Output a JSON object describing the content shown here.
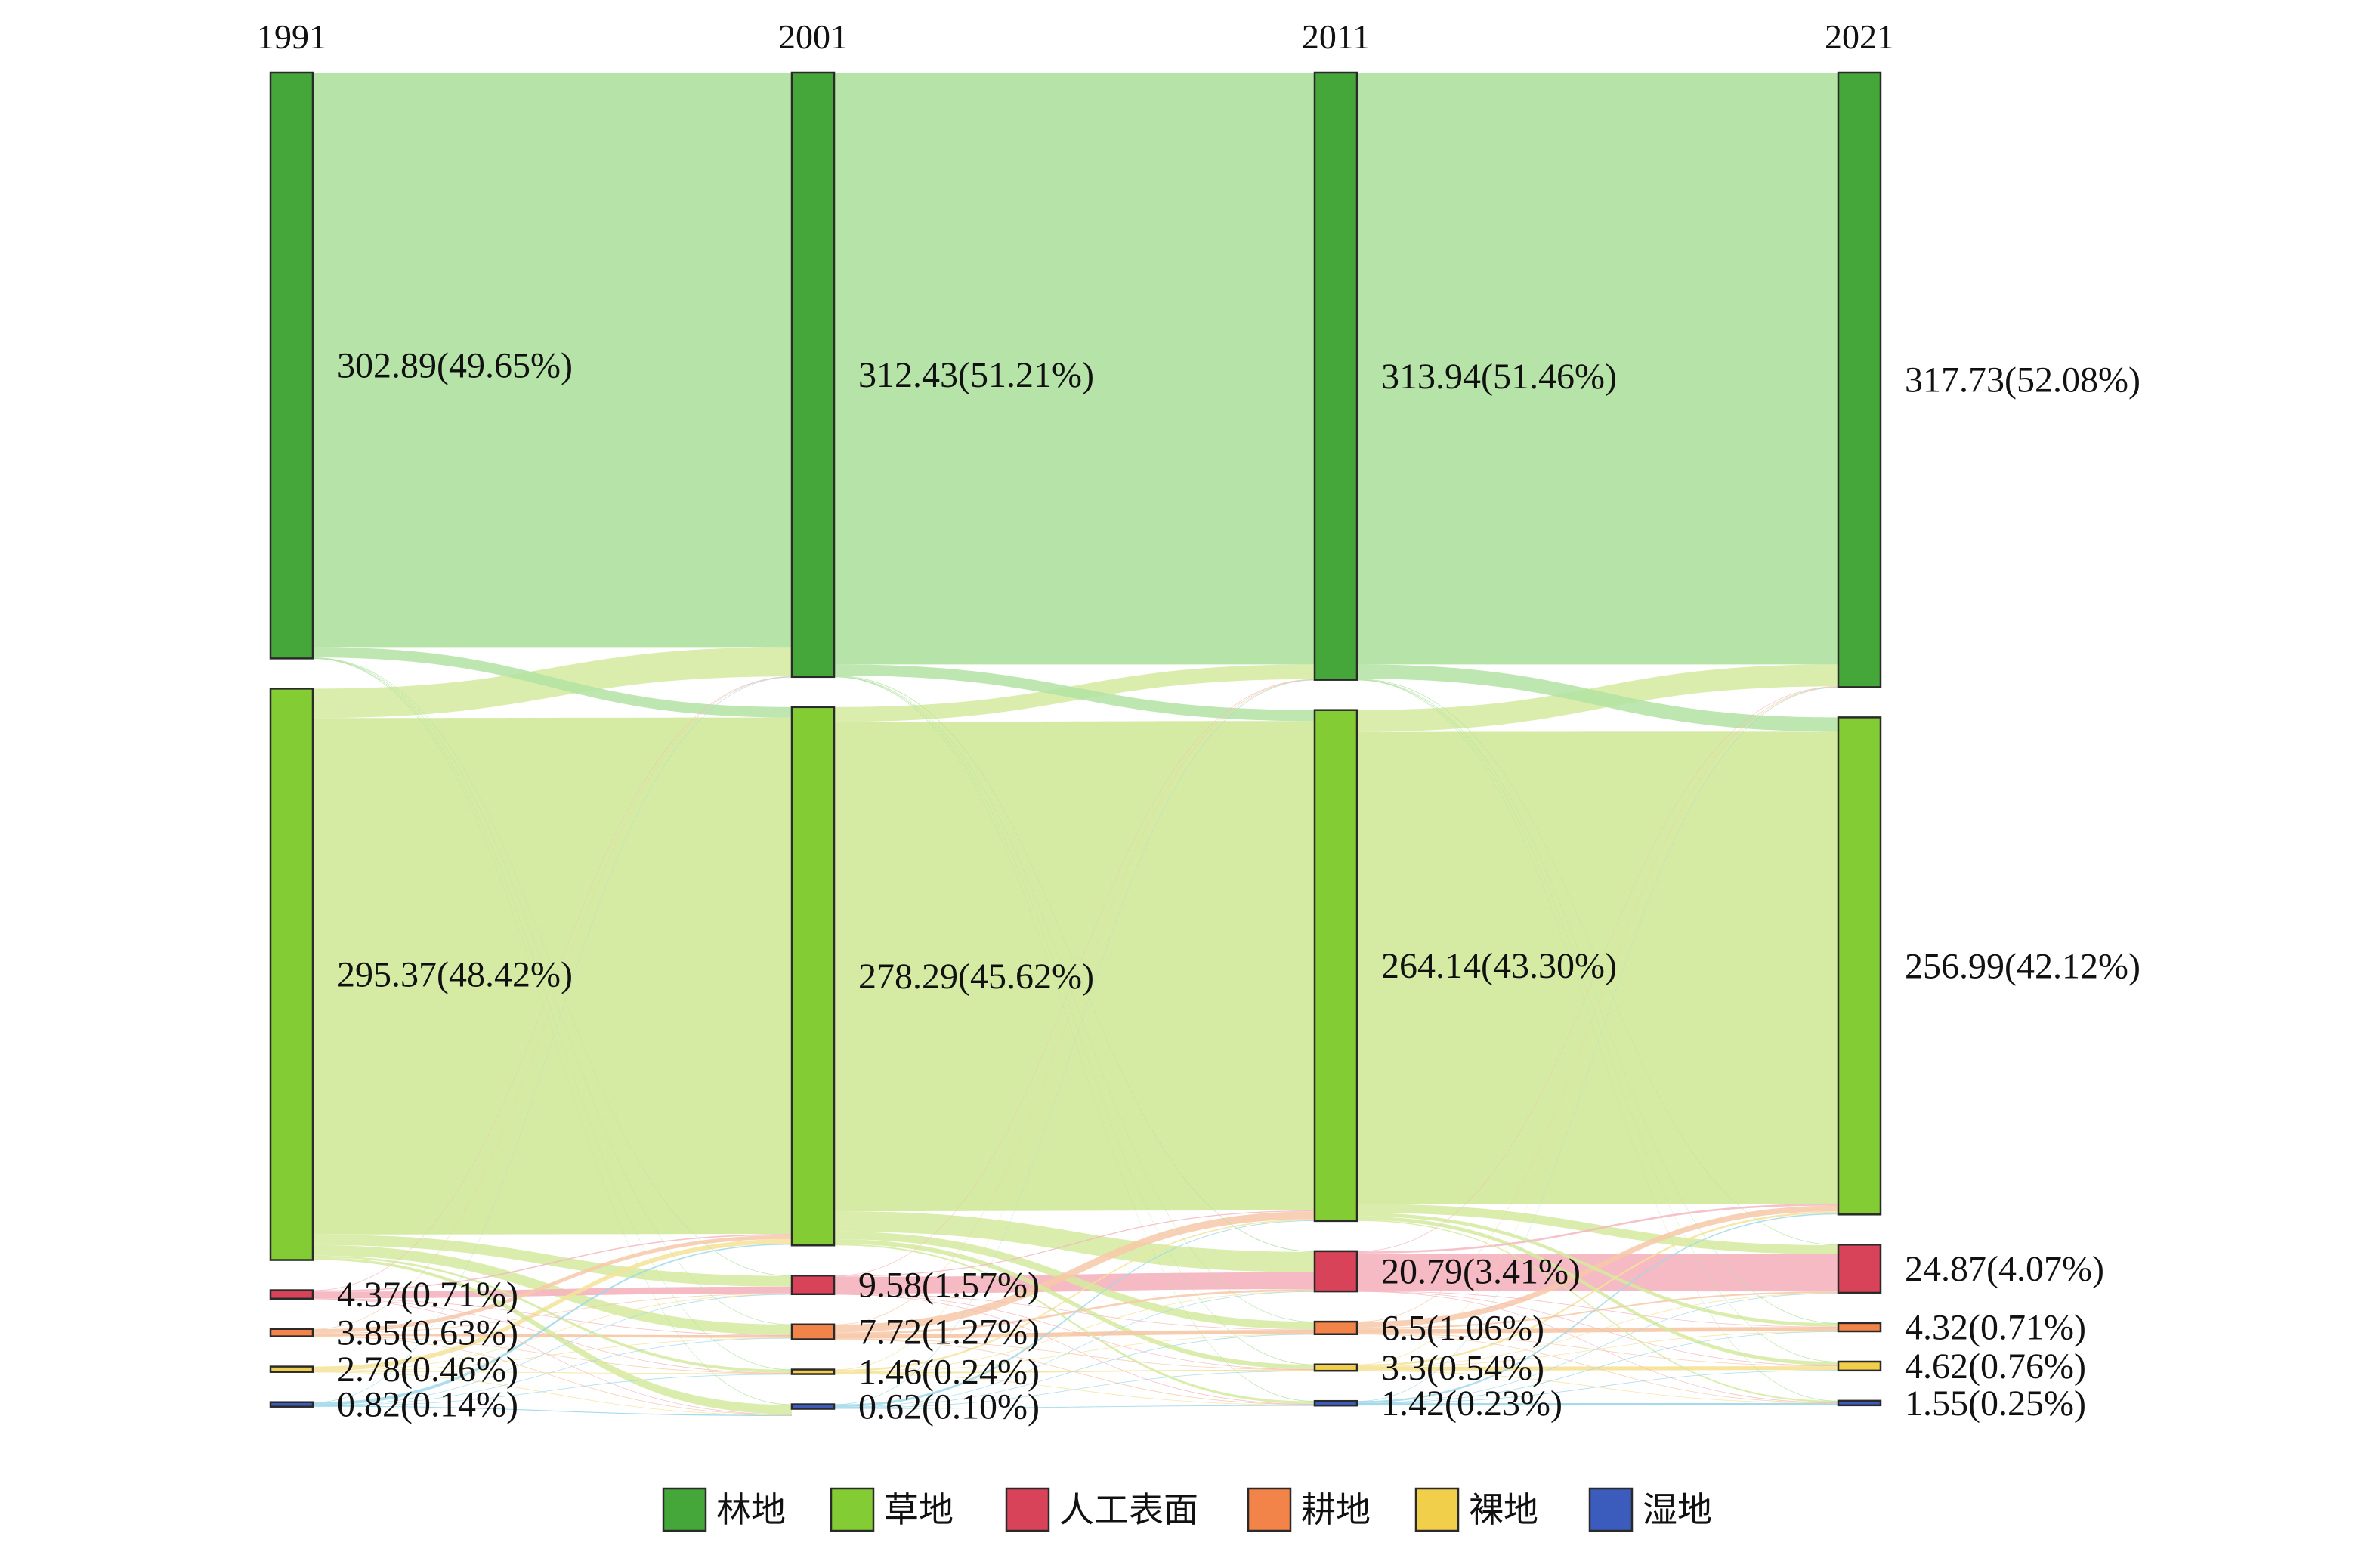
{
  "chart_data": {
    "type": "sankey",
    "years": [
      "1991",
      "2001",
      "2011",
      "2021"
    ],
    "categories": [
      {
        "key": "forest",
        "name": "林地",
        "color": "#45a63a",
        "flow_color": "#b2e2a2"
      },
      {
        "key": "grass",
        "name": "草地",
        "color": "#84cc33",
        "flow_color": "#d3ea9e"
      },
      {
        "key": "urban",
        "name": "人工表面",
        "color": "#d9435a",
        "flow_color": "#f4b6c0"
      },
      {
        "key": "crop",
        "name": "耕地",
        "color": "#f28449",
        "flow_color": "#f7c8a8"
      },
      {
        "key": "bare",
        "name": "裸地",
        "color": "#f2cf4a",
        "flow_color": "#f5e39a"
      },
      {
        "key": "wetland",
        "name": "湿地",
        "color": "#3b5cbd",
        "flow_color": "#9fd8ea"
      }
    ],
    "values": [
      {
        "forest": 302.89,
        "grass": 295.37,
        "urban": 4.37,
        "crop": 3.85,
        "bare": 2.78,
        "wetland": 0.82
      },
      {
        "forest": 312.43,
        "grass": 278.29,
        "urban": 9.58,
        "crop": 7.72,
        "bare": 1.46,
        "wetland": 0.62
      },
      {
        "forest": 313.94,
        "grass": 264.14,
        "urban": 20.79,
        "crop": 6.5,
        "bare": 3.3,
        "wetland": 1.42
      },
      {
        "forest": 317.73,
        "grass": 256.99,
        "urban": 24.87,
        "crop": 4.32,
        "bare": 4.62,
        "wetland": 1.55
      }
    ],
    "labels": [
      {
        "forest": "302.89(49.65%)",
        "grass": "295.37(48.42%)",
        "urban": "4.37(0.71%)",
        "crop": "3.85(0.63%)",
        "bare": "2.78(0.46%)",
        "wetland": "0.82(0.14%)"
      },
      {
        "forest": "312.43(51.21%)",
        "grass": "278.29(45.62%)",
        "urban": "9.58(1.57%)",
        "crop": "7.72(1.27%)",
        "bare": "1.46(0.24%)",
        "wetland": "0.62(0.10%)"
      },
      {
        "forest": "313.94(51.46%)",
        "grass": "264.14(43.30%)",
        "urban": "20.79(3.41%)",
        "crop": "6.5(1.06%)",
        "bare": "3.3(0.54%)",
        "wetland": "1.42(0.23%)"
      },
      {
        "forest": "317.73(52.08%)",
        "grass": "256.99(42.12%)",
        "urban": "24.87(4.07%)",
        "crop": "4.32(0.71%)",
        "bare": "4.62(0.76%)",
        "wetland": "1.55(0.25%)"
      }
    ],
    "transitions": [
      [
        [
          "forest",
          "forest",
          297.0
        ],
        [
          "forest",
          "grass",
          5.4
        ],
        [
          "forest",
          "urban",
          0.2
        ],
        [
          "forest",
          "crop",
          0.1
        ],
        [
          "forest",
          "bare",
          0.1
        ],
        [
          "forest",
          "wetland",
          0.09
        ],
        [
          "grass",
          "forest",
          15.2
        ],
        [
          "grass",
          "grass",
          267.0
        ],
        [
          "grass",
          "urban",
          5.5
        ],
        [
          "grass",
          "crop",
          5.4
        ],
        [
          "grass",
          "bare",
          1.0
        ],
        [
          "grass",
          "wetland",
          1.27
        ],
        [
          "urban",
          "forest",
          0.1
        ],
        [
          "urban",
          "grass",
          0.6
        ],
        [
          "urban",
          "urban",
          3.5
        ],
        [
          "urban",
          "crop",
          0.1
        ],
        [
          "urban",
          "bare",
          0.05
        ],
        [
          "urban",
          "wetland",
          0.02
        ],
        [
          "crop",
          "forest",
          0.1
        ],
        [
          "crop",
          "grass",
          2.0
        ],
        [
          "crop",
          "urban",
          0.3
        ],
        [
          "crop",
          "crop",
          1.35
        ],
        [
          "crop",
          "bare",
          0.05
        ],
        [
          "crop",
          "wetland",
          0.05
        ],
        [
          "bare",
          "forest",
          0.0
        ],
        [
          "bare",
          "grass",
          2.4
        ],
        [
          "bare",
          "urban",
          0.05
        ],
        [
          "bare",
          "crop",
          0.05
        ],
        [
          "bare",
          "bare",
          0.25
        ],
        [
          "bare",
          "wetland",
          0.03
        ],
        [
          "wetland",
          "forest",
          0.03
        ],
        [
          "wetland",
          "grass",
          0.59
        ],
        [
          "wetland",
          "urban",
          0.03
        ],
        [
          "wetland",
          "crop",
          0.02
        ],
        [
          "wetland",
          "bare",
          0.01
        ],
        [
          "wetland",
          "wetland",
          0.14
        ]
      ],
      [
        [
          "forest",
          "forest",
          306.0
        ],
        [
          "forest",
          "grass",
          5.7
        ],
        [
          "forest",
          "urban",
          0.4
        ],
        [
          "forest",
          "crop",
          0.1
        ],
        [
          "forest",
          "bare",
          0.1
        ],
        [
          "forest",
          "wetland",
          0.13
        ],
        [
          "grass",
          "forest",
          7.6
        ],
        [
          "grass",
          "grass",
          253.0
        ],
        [
          "grass",
          "urban",
          10.5
        ],
        [
          "grass",
          "crop",
          4.0
        ],
        [
          "grass",
          "bare",
          2.4
        ],
        [
          "grass",
          "wetland",
          0.79
        ],
        [
          "urban",
          "forest",
          0.1
        ],
        [
          "urban",
          "grass",
          0.5
        ],
        [
          "urban",
          "urban",
          8.7
        ],
        [
          "urban",
          "crop",
          0.2
        ],
        [
          "urban",
          "bare",
          0.05
        ],
        [
          "urban",
          "wetland",
          0.03
        ],
        [
          "crop",
          "forest",
          0.1
        ],
        [
          "crop",
          "grass",
          4.0
        ],
        [
          "crop",
          "urban",
          1.1
        ],
        [
          "crop",
          "crop",
          2.1
        ],
        [
          "crop",
          "bare",
          0.2
        ],
        [
          "crop",
          "wetland",
          0.22
        ],
        [
          "bare",
          "forest",
          0.1
        ],
        [
          "bare",
          "grass",
          0.6
        ],
        [
          "bare",
          "urban",
          0.05
        ],
        [
          "bare",
          "crop",
          0.05
        ],
        [
          "bare",
          "bare",
          0.5
        ],
        [
          "bare",
          "wetland",
          0.16
        ],
        [
          "wetland",
          "forest",
          0.04
        ],
        [
          "wetland",
          "grass",
          0.34
        ],
        [
          "wetland",
          "urban",
          0.04
        ],
        [
          "wetland",
          "crop",
          0.05
        ],
        [
          "wetland",
          "bare",
          0.05
        ],
        [
          "wetland",
          "wetland",
          0.1
        ]
      ],
      [
        [
          "forest",
          "forest",
          306.0
        ],
        [
          "forest",
          "grass",
          7.4
        ],
        [
          "forest",
          "urban",
          0.3
        ],
        [
          "forest",
          "crop",
          0.1
        ],
        [
          "forest",
          "bare",
          0.1
        ],
        [
          "forest",
          "wetland",
          0.04
        ],
        [
          "grass",
          "forest",
          11.3
        ],
        [
          "grass",
          "grass",
          244.0
        ],
        [
          "grass",
          "urban",
          4.6
        ],
        [
          "grass",
          "crop",
          1.8
        ],
        [
          "grass",
          "bare",
          1.9
        ],
        [
          "grass",
          "wetland",
          0.54
        ],
        [
          "urban",
          "forest",
          0.2
        ],
        [
          "urban",
          "grass",
          1.0
        ],
        [
          "urban",
          "urban",
          19.3
        ],
        [
          "urban",
          "crop",
          0.15
        ],
        [
          "urban",
          "bare",
          0.1
        ],
        [
          "urban",
          "wetland",
          0.04
        ],
        [
          "crop",
          "forest",
          0.1
        ],
        [
          "crop",
          "grass",
          3.0
        ],
        [
          "crop",
          "urban",
          0.8
        ],
        [
          "crop",
          "crop",
          2.2
        ],
        [
          "crop",
          "bare",
          0.3
        ],
        [
          "crop",
          "wetland",
          0.1
        ],
        [
          "bare",
          "forest",
          0.1
        ],
        [
          "bare",
          "grass",
          1.0
        ],
        [
          "bare",
          "urban",
          0.05
        ],
        [
          "bare",
          "crop",
          0.05
        ],
        [
          "bare",
          "bare",
          2.0
        ],
        [
          "bare",
          "wetland",
          0.1
        ],
        [
          "wetland",
          "forest",
          0.03
        ],
        [
          "wetland",
          "grass",
          0.59
        ],
        [
          "wetland",
          "urban",
          0.02
        ],
        [
          "wetland",
          "crop",
          0.02
        ],
        [
          "wetland",
          "bare",
          0.02
        ],
        [
          "wetland",
          "wetland",
          0.74
        ]
      ]
    ]
  }
}
